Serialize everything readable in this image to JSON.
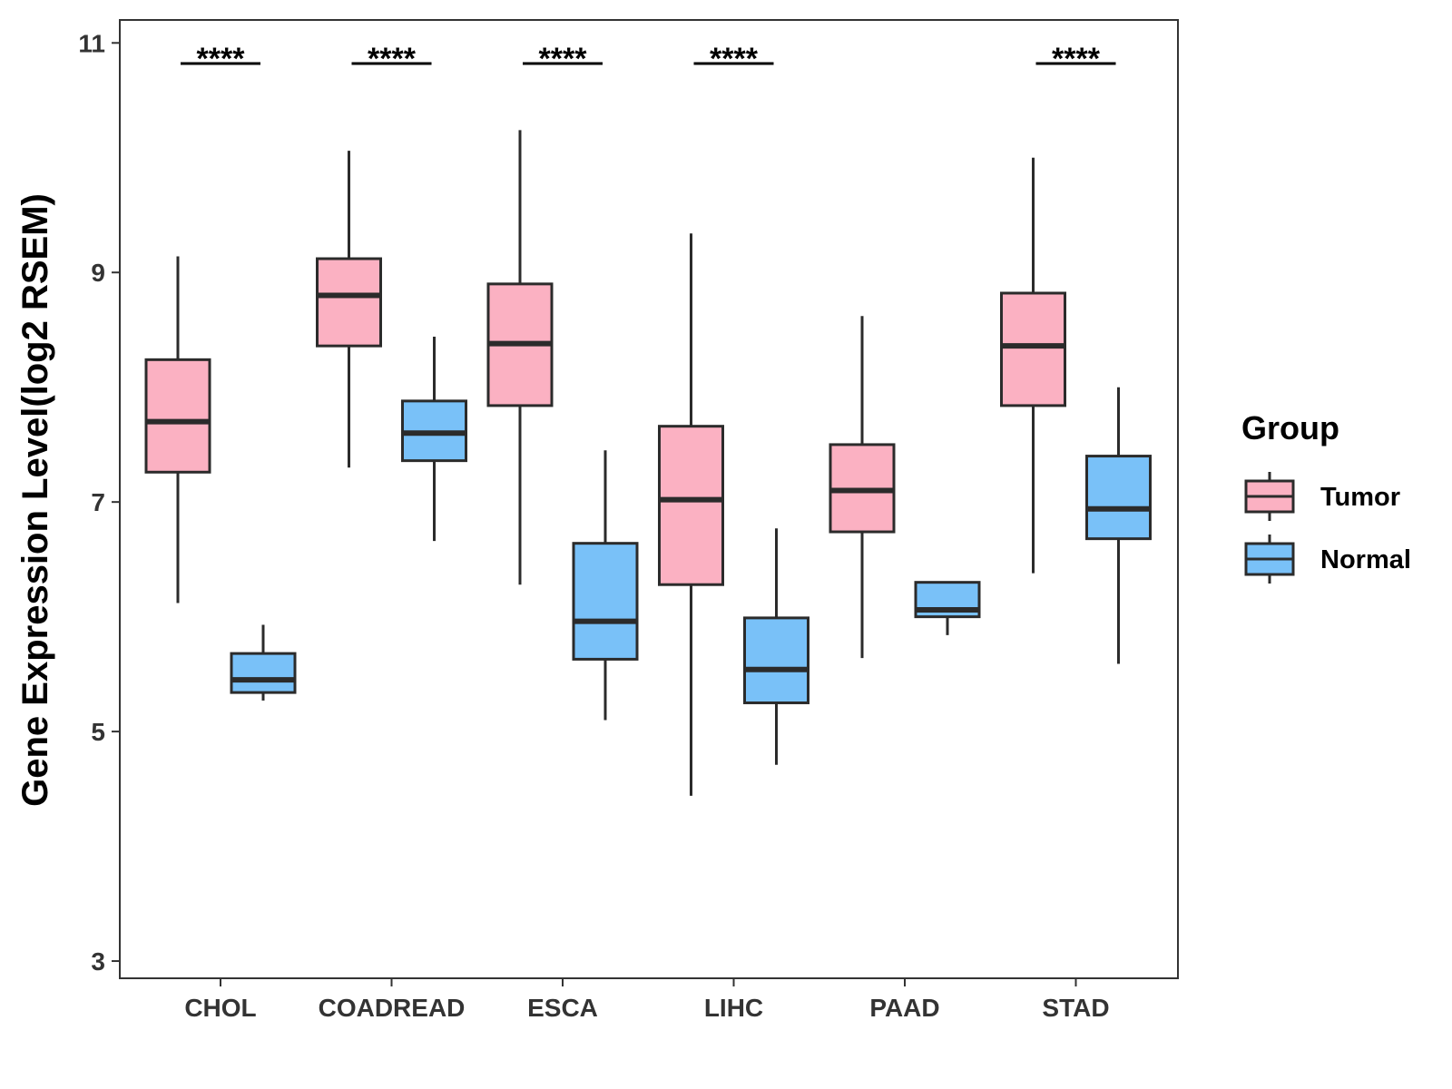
{
  "chart_data": {
    "type": "boxplot",
    "title": "",
    "xlabel": "",
    "ylabel": "Gene Expression Level(log2 RSEM)",
    "ylim": [
      2.85,
      11.2
    ],
    "yticks": [
      3,
      5,
      7,
      9,
      11
    ],
    "ytick_labels": [
      "3",
      "5",
      "7",
      "9",
      "11"
    ],
    "grid": false,
    "legend_position": "right",
    "legend_title": "Group",
    "categories": [
      "CHOL",
      "COADREAD",
      "ESCA",
      "LIHC",
      "PAAD",
      "STAD"
    ],
    "series": [
      {
        "name": "Tumor",
        "color": "#FBB1C2",
        "boxes": [
          {
            "whisker_low": 6.12,
            "q1": 7.26,
            "median": 7.7,
            "q3": 8.24,
            "whisker_high": 9.14
          },
          {
            "whisker_low": 7.3,
            "q1": 8.36,
            "median": 8.8,
            "q3": 9.12,
            "whisker_high": 10.06
          },
          {
            "whisker_low": 6.28,
            "q1": 7.84,
            "median": 8.38,
            "q3": 8.9,
            "whisker_high": 10.24
          },
          {
            "whisker_low": 4.44,
            "q1": 6.28,
            "median": 7.02,
            "q3": 7.66,
            "whisker_high": 9.34
          },
          {
            "whisker_low": 5.64,
            "q1": 6.74,
            "median": 7.1,
            "q3": 7.5,
            "whisker_high": 8.62
          },
          {
            "whisker_low": 6.38,
            "q1": 7.84,
            "median": 8.36,
            "q3": 8.82,
            "whisker_high": 10.0
          }
        ]
      },
      {
        "name": "Normal",
        "color": "#79C1F8",
        "boxes": [
          {
            "whisker_low": 5.27,
            "q1": 5.34,
            "median": 5.45,
            "q3": 5.68,
            "whisker_high": 5.93
          },
          {
            "whisker_low": 6.66,
            "q1": 7.36,
            "median": 7.6,
            "q3": 7.88,
            "whisker_high": 8.44
          },
          {
            "whisker_low": 5.1,
            "q1": 5.63,
            "median": 5.96,
            "q3": 6.64,
            "whisker_high": 7.45
          },
          {
            "whisker_low": 4.71,
            "q1": 5.25,
            "median": 5.54,
            "q3": 5.99,
            "whisker_high": 6.77
          },
          {
            "whisker_low": 5.84,
            "q1": 6.0,
            "median": 6.06,
            "q3": 6.3,
            "whisker_high": 6.3
          },
          {
            "whisker_low": 5.59,
            "q1": 6.68,
            "median": 6.94,
            "q3": 7.4,
            "whisker_high": 8.0
          }
        ]
      }
    ],
    "significance": [
      {
        "category": "CHOL",
        "label": "****"
      },
      {
        "category": "COADREAD",
        "label": "****"
      },
      {
        "category": "ESCA",
        "label": "****"
      },
      {
        "category": "LIHC",
        "label": "****"
      },
      {
        "category": "STAD",
        "label": "****"
      }
    ],
    "significance_level": 10.82
  }
}
